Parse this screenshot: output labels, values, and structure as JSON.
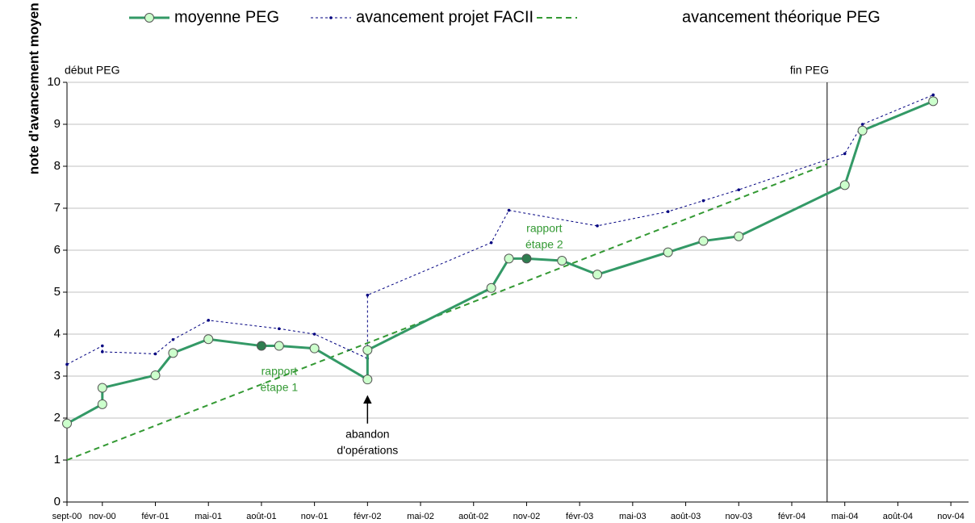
{
  "chart_data": {
    "type": "line",
    "ylabel": "note d'avancement moyen des opérations",
    "xlim": [
      "2000-09",
      "2004-12"
    ],
    "xticks": [
      {
        "value": "2000-09",
        "label": "sept-00"
      },
      {
        "value": "2000-11",
        "label": "nov-00"
      },
      {
        "value": "2001-02",
        "label": "févr-01"
      },
      {
        "value": "2001-05",
        "label": "mai-01"
      },
      {
        "value": "2001-08",
        "label": "août-01"
      },
      {
        "value": "2001-11",
        "label": "nov-01"
      },
      {
        "value": "2002-02",
        "label": "févr-02"
      },
      {
        "value": "2002-05",
        "label": "mai-02"
      },
      {
        "value": "2002-08",
        "label": "août-02"
      },
      {
        "value": "2002-11",
        "label": "nov-02"
      },
      {
        "value": "2003-02",
        "label": "févr-03"
      },
      {
        "value": "2003-05",
        "label": "mai-03"
      },
      {
        "value": "2003-08",
        "label": "août-03"
      },
      {
        "value": "2003-11",
        "label": "nov-03"
      },
      {
        "value": "2004-02",
        "label": "févr-04"
      },
      {
        "value": "2004-05",
        "label": "mai-04"
      },
      {
        "value": "2004-08",
        "label": "août-04"
      },
      {
        "value": "2004-11",
        "label": "nov-04"
      }
    ],
    "ylim": [
      0,
      10
    ],
    "yticks": [
      0,
      1,
      2,
      3,
      4,
      5,
      6,
      7,
      8,
      9,
      10
    ],
    "grid": true,
    "series": [
      {
        "name": "moyenne PEG",
        "color": "#339966",
        "style": "solid",
        "marker_fill": "#ccffcc",
        "x": [
          "2000-09",
          "2000-11",
          "2000-11",
          "2001-02",
          "2001-03",
          "2001-05",
          "2001-08",
          "2001-09",
          "2001-11",
          "2002-02",
          "2002-02",
          "2002-09",
          "2002-10",
          "2002-11",
          "2003-01",
          "2003-03",
          "2003-07",
          "2003-09",
          "2003-11",
          "2004-05",
          "2004-06",
          "2004-10"
        ],
        "values": [
          1.87,
          2.33,
          2.72,
          3.02,
          3.55,
          3.88,
          3.72,
          3.72,
          3.66,
          2.92,
          3.62,
          5.1,
          5.8,
          5.8,
          5.75,
          5.42,
          5.95,
          6.22,
          6.33,
          7.55,
          8.85,
          9.55
        ],
        "marker_colors": [
          "#ccffcc",
          "#ccffcc",
          "#ccffcc",
          "#ccffcc",
          "#ccffcc",
          "#ccffcc",
          "#2e7d4f",
          "#ccffcc",
          "#ccffcc",
          "#ccffcc",
          "#ccffcc",
          "#ccffcc",
          "#ccffcc",
          "#2e7d4f",
          "#ccffcc",
          "#ccffcc",
          "#ccffcc",
          "#ccffcc",
          "#ccffcc",
          "#ccffcc",
          "#ccffcc",
          "#ccffcc"
        ]
      },
      {
        "name": "avancement projet FACII",
        "color": "#000080",
        "style": "dotted",
        "x": [
          "2000-09",
          "2000-11",
          "2000-11",
          "2001-02",
          "2001-03",
          "2001-05",
          "2001-09",
          "2001-11",
          "2002-02",
          "2002-02",
          "2002-09",
          "2002-10",
          "2003-03",
          "2003-07",
          "2003-09",
          "2003-11",
          "2004-05",
          "2004-06",
          "2004-10"
        ],
        "values": [
          3.28,
          3.72,
          3.58,
          3.53,
          3.87,
          4.33,
          4.13,
          4.0,
          3.42,
          4.93,
          6.18,
          6.95,
          6.58,
          6.92,
          7.18,
          7.44,
          8.3,
          9.0,
          9.7
        ]
      },
      {
        "name": "avancement théorique PEG",
        "color": "#339933",
        "style": "dashed",
        "x": [
          "2000-09",
          "2004-04"
        ],
        "values": [
          1,
          8.05
        ]
      }
    ],
    "vline": {
      "x": "2004-04",
      "label": "fin PEG"
    },
    "start_label": "début PEG",
    "annotations": [
      {
        "lines": [
          "rapport",
          "étape 1"
        ],
        "at": "2001-09",
        "value": 3.1,
        "color": "#339933"
      },
      {
        "lines": [
          "rapport",
          "étape 2"
        ],
        "at": "2002-12",
        "value": 6.5,
        "color": "#339933"
      },
      {
        "lines": [
          "abandon",
          "d'opérations"
        ],
        "at": "2002-02",
        "value": 1.6,
        "color": "#000000",
        "arrow": true
      }
    ]
  }
}
